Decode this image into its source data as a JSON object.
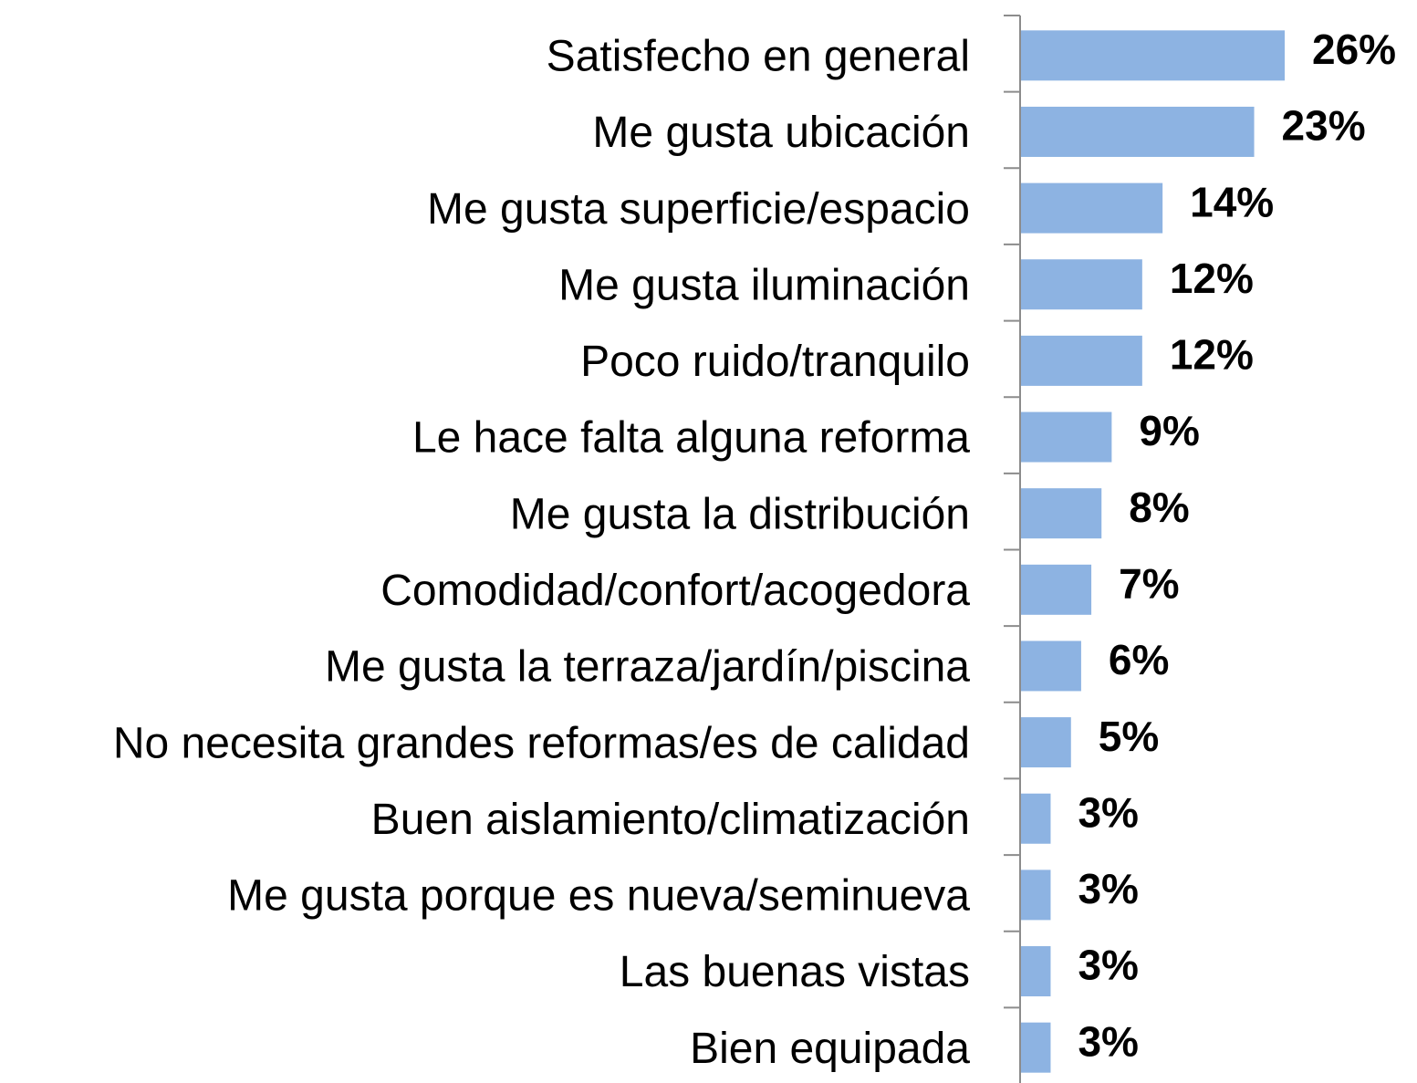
{
  "chart_data": {
    "type": "bar",
    "orientation": "horizontal",
    "categories": [
      "Satisfecho  en general",
      "Me gusta ubicación",
      "Me gusta superficie/espacio",
      "Me gusta iluminación",
      "Poco ruido/tranquilo",
      "Le hace falta alguna reforma",
      "Me gusta la distribución",
      "Comodidad/confort/acogedora",
      "Me gusta la terraza/jardín/piscina",
      "No necesita grandes reformas/es de calidad",
      "Buen aislamiento/climatización",
      "Me gusta porque es nueva/seminueva",
      "Las  buenas vistas",
      "Bien equipada"
    ],
    "values": [
      26,
      23,
      14,
      12,
      12,
      9,
      8,
      7,
      6,
      5,
      3,
      3,
      3,
      3
    ],
    "value_labels": [
      "26%",
      "23%",
      "14%",
      "12%",
      "12%",
      "9%",
      "8%",
      "7%",
      "6%",
      "5%",
      "3%",
      "3%",
      "3%",
      "3%"
    ],
    "color": "#8db3e2"
  }
}
